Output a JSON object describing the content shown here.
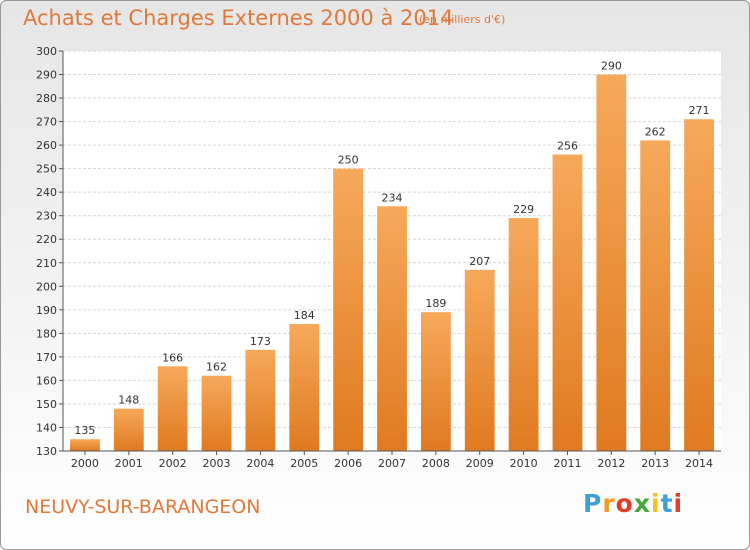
{
  "chart_data": {
    "type": "bar",
    "title": "Achats et Charges Externes 2000 à 2014",
    "subtitle": "(en milliers d'€)",
    "categories": [
      "2000",
      "2001",
      "2002",
      "2003",
      "2004",
      "2005",
      "2006",
      "2007",
      "2008",
      "2009",
      "2010",
      "2011",
      "2012",
      "2013",
      "2014"
    ],
    "values": [
      135,
      148,
      166,
      162,
      173,
      184,
      250,
      234,
      189,
      207,
      229,
      256,
      290,
      262,
      271
    ],
    "ylim": [
      130,
      300
    ],
    "yticks": [
      130,
      140,
      150,
      160,
      170,
      180,
      190,
      200,
      210,
      220,
      230,
      240,
      250,
      260,
      270,
      280,
      290,
      300
    ],
    "grid": true,
    "bar_color": "#f0913a",
    "bar_color_light": "#f6a95a",
    "bar_color_dark": "#e07a20"
  },
  "footer": {
    "commune": "NEUVY-SUR-BARANGEON",
    "logo_text": "Proxiti",
    "logo_colors": [
      "#3f9fd6",
      "#f59c1f",
      "#e23c26",
      "#46a83a",
      "#f5c21b",
      "#3f9fd6",
      "#e23c26"
    ]
  }
}
